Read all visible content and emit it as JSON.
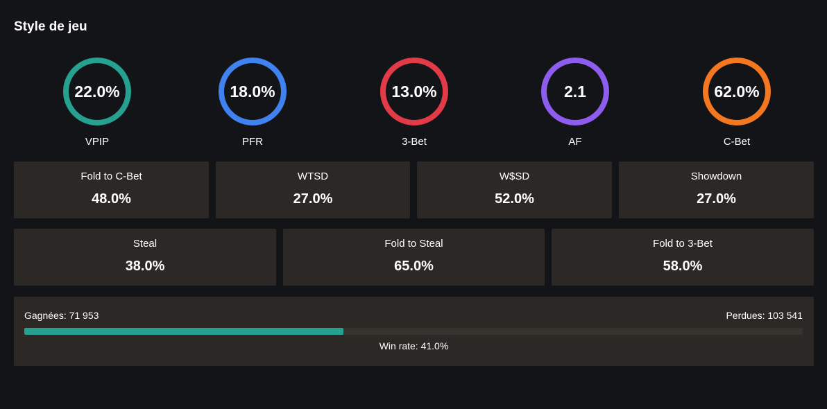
{
  "title": "Style de jeu",
  "metrics": [
    {
      "label": "VPIP",
      "value": "22.0%",
      "color": "#26a08f",
      "icon": "ring-indicator"
    },
    {
      "label": "PFR",
      "value": "18.0%",
      "color": "#3f82f0",
      "icon": "ring-indicator"
    },
    {
      "label": "3-Bet",
      "value": "13.0%",
      "color": "#e33a47",
      "icon": "ring-indicator"
    },
    {
      "label": "AF",
      "value": "2.1",
      "color": "#8f5cf0",
      "icon": "ring-indicator"
    },
    {
      "label": "C-Bet",
      "value": "62.0%",
      "color": "#f57720",
      "icon": "ring-indicator"
    }
  ],
  "stats_row1": [
    {
      "label": "Fold to C-Bet",
      "value": "48.0%"
    },
    {
      "label": "WTSD",
      "value": "27.0%"
    },
    {
      "label": "W$SD",
      "value": "52.0%"
    },
    {
      "label": "Showdown",
      "value": "27.0%"
    }
  ],
  "stats_row2": [
    {
      "label": "Steal",
      "value": "38.0%"
    },
    {
      "label": "Fold to Steal",
      "value": "65.0%"
    },
    {
      "label": "Fold to 3-Bet",
      "value": "58.0%"
    }
  ],
  "winrate": {
    "won_label": "Gagnées: 71 953",
    "lost_label": "Perdues: 103 541",
    "rate_label": "Win rate: 41.0%",
    "rate_fraction": 0.41,
    "fill_color": "#26a08f",
    "track_color": "#36332f"
  }
}
